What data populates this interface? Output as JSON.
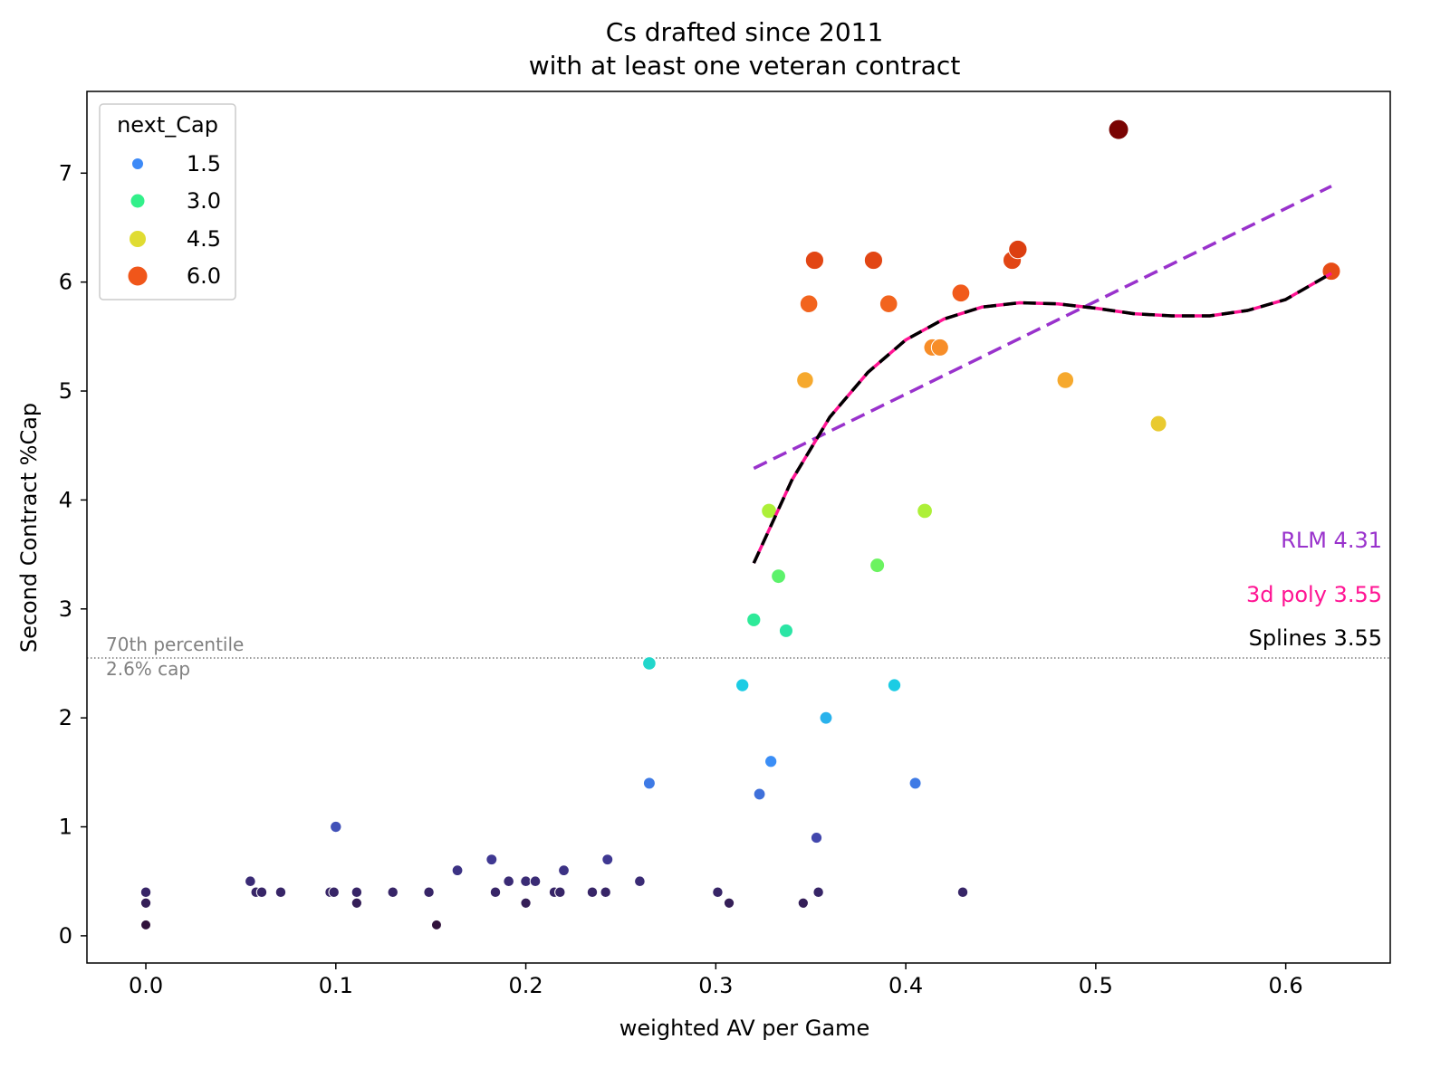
{
  "chart_data": {
    "type": "scatter",
    "title": "Cs drafted since 2011",
    "subtitle": "with at least one veteran contract",
    "xlabel": "weighted AV per Game",
    "ylabel": "Second Contract %Cap",
    "xlim": [
      -0.031,
      0.655
    ],
    "ylim": [
      -0.25,
      7.75
    ],
    "xticks": [
      "0.0",
      "0.1",
      "0.2",
      "0.3",
      "0.4",
      "0.5",
      "0.6"
    ],
    "yticks": [
      "0",
      "1",
      "2",
      "3",
      "4",
      "5",
      "6",
      "7"
    ],
    "grid": false,
    "legend": {
      "title": "next_Cap",
      "placement": "top-left",
      "entries": [
        {
          "label": "1.5",
          "color": "#3d8af7"
        },
        {
          "label": "3.0",
          "color": "#32f08a"
        },
        {
          "label": "4.5",
          "color": "#e0dc32"
        },
        {
          "label": "6.0",
          "color": "#f0561a"
        }
      ]
    },
    "points": [
      {
        "x": 0.0,
        "y": 0.4
      },
      {
        "x": 0.0,
        "y": 0.3
      },
      {
        "x": 0.0,
        "y": 0.1
      },
      {
        "x": 0.055,
        "y": 0.5
      },
      {
        "x": 0.058,
        "y": 0.4
      },
      {
        "x": 0.061,
        "y": 0.4
      },
      {
        "x": 0.071,
        "y": 0.4
      },
      {
        "x": 0.097,
        "y": 0.4
      },
      {
        "x": 0.099,
        "y": 0.4
      },
      {
        "x": 0.1,
        "y": 1.0
      },
      {
        "x": 0.111,
        "y": 0.4
      },
      {
        "x": 0.111,
        "y": 0.3
      },
      {
        "x": 0.13,
        "y": 0.4
      },
      {
        "x": 0.149,
        "y": 0.4
      },
      {
        "x": 0.153,
        "y": 0.1
      },
      {
        "x": 0.164,
        "y": 0.6
      },
      {
        "x": 0.182,
        "y": 0.7
      },
      {
        "x": 0.184,
        "y": 0.4
      },
      {
        "x": 0.191,
        "y": 0.5
      },
      {
        "x": 0.2,
        "y": 0.5
      },
      {
        "x": 0.2,
        "y": 0.3
      },
      {
        "x": 0.205,
        "y": 0.5
      },
      {
        "x": 0.215,
        "y": 0.4
      },
      {
        "x": 0.218,
        "y": 0.4
      },
      {
        "x": 0.22,
        "y": 0.6
      },
      {
        "x": 0.235,
        "y": 0.4
      },
      {
        "x": 0.242,
        "y": 0.4
      },
      {
        "x": 0.243,
        "y": 0.7
      },
      {
        "x": 0.26,
        "y": 0.5
      },
      {
        "x": 0.265,
        "y": 1.4
      },
      {
        "x": 0.265,
        "y": 2.5
      },
      {
        "x": 0.301,
        "y": 0.4
      },
      {
        "x": 0.307,
        "y": 0.3
      },
      {
        "x": 0.314,
        "y": 2.3
      },
      {
        "x": 0.32,
        "y": 2.9
      },
      {
        "x": 0.323,
        "y": 1.3
      },
      {
        "x": 0.328,
        "y": 3.9
      },
      {
        "x": 0.329,
        "y": 1.6
      },
      {
        "x": 0.333,
        "y": 3.3
      },
      {
        "x": 0.337,
        "y": 2.8
      },
      {
        "x": 0.346,
        "y": 0.3
      },
      {
        "x": 0.347,
        "y": 5.1
      },
      {
        "x": 0.349,
        "y": 5.8
      },
      {
        "x": 0.352,
        "y": 6.2
      },
      {
        "x": 0.353,
        "y": 0.9
      },
      {
        "x": 0.354,
        "y": 0.4
      },
      {
        "x": 0.358,
        "y": 2.0
      },
      {
        "x": 0.383,
        "y": 6.2
      },
      {
        "x": 0.385,
        "y": 3.4
      },
      {
        "x": 0.391,
        "y": 5.8
      },
      {
        "x": 0.394,
        "y": 2.3
      },
      {
        "x": 0.405,
        "y": 1.4
      },
      {
        "x": 0.41,
        "y": 3.9
      },
      {
        "x": 0.414,
        "y": 5.4
      },
      {
        "x": 0.418,
        "y": 5.4
      },
      {
        "x": 0.429,
        "y": 5.9
      },
      {
        "x": 0.43,
        "y": 0.4
      },
      {
        "x": 0.456,
        "y": 6.2
      },
      {
        "x": 0.459,
        "y": 6.3
      },
      {
        "x": 0.484,
        "y": 5.1
      },
      {
        "x": 0.512,
        "y": 7.4
      },
      {
        "x": 0.533,
        "y": 4.7
      },
      {
        "x": 0.624,
        "y": 6.1
      }
    ],
    "reference_line": {
      "y": 2.55,
      "label_line1": "70th percentile",
      "label_line2": "2.6% cap"
    },
    "fits": [
      {
        "name": "RLM 4.31",
        "color": "#9932cc",
        "style": "dashed",
        "x": [
          0.32,
          0.624
        ],
        "y": [
          4.29,
          6.88
        ]
      },
      {
        "name": "3d poly 3.55",
        "color": "#ff1493",
        "style": "solid",
        "x": [
          0.32,
          0.34,
          0.36,
          0.38,
          0.4,
          0.42,
          0.44,
          0.46,
          0.48,
          0.5,
          0.52,
          0.54,
          0.56,
          0.58,
          0.6,
          0.624
        ],
        "y": [
          3.42,
          4.18,
          4.76,
          5.17,
          5.47,
          5.66,
          5.77,
          5.81,
          5.8,
          5.76,
          5.71,
          5.69,
          5.69,
          5.74,
          5.84,
          6.08
        ]
      },
      {
        "name": "Splines 3.55",
        "color": "#000000",
        "style": "dashed",
        "x": [
          0.32,
          0.34,
          0.36,
          0.38,
          0.4,
          0.42,
          0.44,
          0.46,
          0.48,
          0.5,
          0.52,
          0.54,
          0.56,
          0.58,
          0.6,
          0.624
        ],
        "y": [
          3.42,
          4.18,
          4.76,
          5.17,
          5.47,
          5.66,
          5.77,
          5.81,
          5.8,
          5.76,
          5.71,
          5.69,
          5.69,
          5.74,
          5.84,
          6.08
        ]
      }
    ]
  }
}
